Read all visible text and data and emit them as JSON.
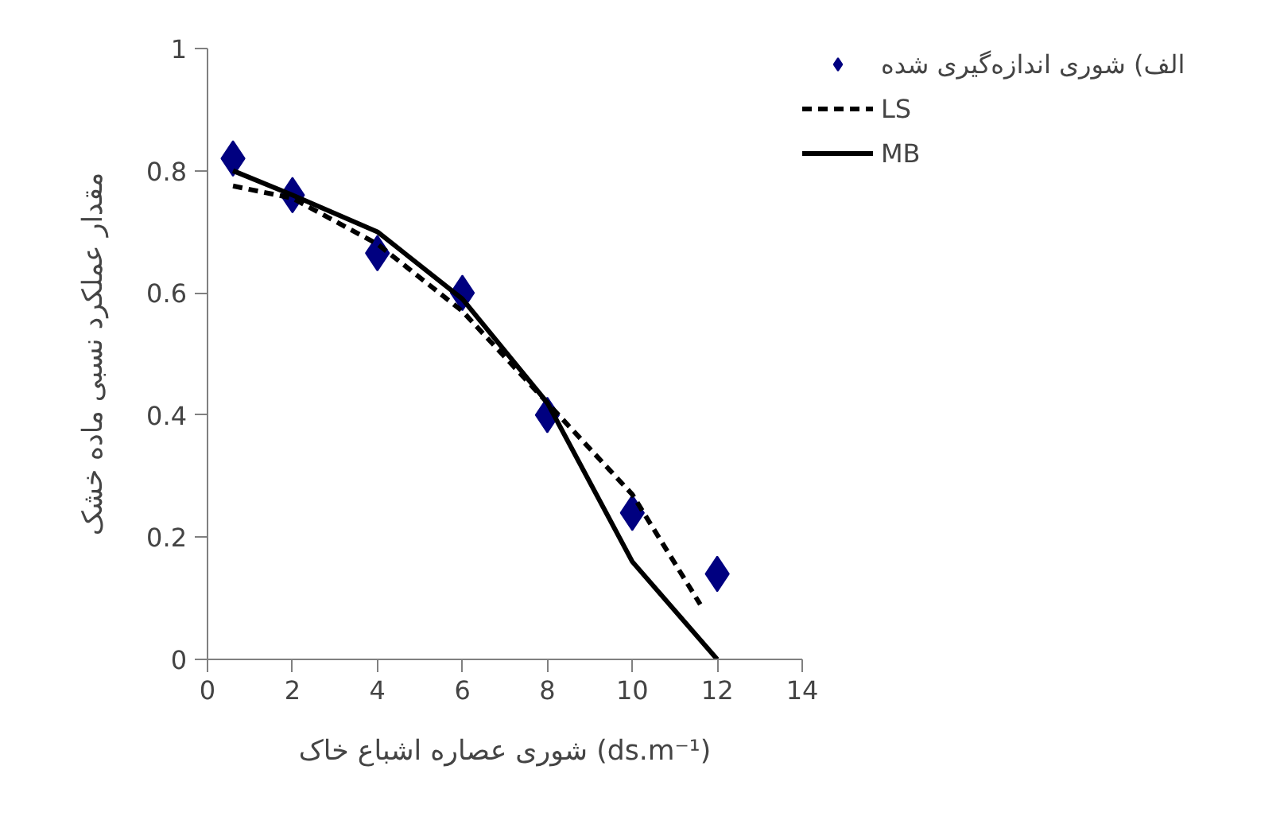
{
  "chart_data": {
    "type": "line",
    "xlabel": "شوری عصاره اشباع خاک (ds.m⁻¹)",
    "ylabel": "مقدار عملکرد نسبی ماده خشک",
    "xlim": [
      0,
      14
    ],
    "xticks": [
      0,
      2,
      4,
      6,
      8,
      10,
      12,
      14
    ],
    "ylim": [
      0,
      1
    ],
    "yticks": [
      0,
      0.2,
      0.4,
      0.6,
      0.8,
      1
    ],
    "grid": false,
    "legend": "top right",
    "series": [
      {
        "name": "الف) شوری اندازه‌گیری شده",
        "type": "scatter",
        "marker": "diamond",
        "color": "#000080",
        "x": [
          0.6,
          2,
          4,
          6,
          8,
          10,
          12
        ],
        "values": [
          0.82,
          0.76,
          0.665,
          0.6,
          0.4,
          0.24,
          0.14
        ]
      },
      {
        "name": "LS",
        "line_style": "dashed",
        "color": "#000000",
        "x": [
          0.6,
          2,
          4,
          6,
          8,
          10,
          11.6
        ],
        "values": [
          0.775,
          0.755,
          0.68,
          0.57,
          0.42,
          0.27,
          0.09
        ]
      },
      {
        "name": "MB",
        "line_style": "solid",
        "color": "#000000",
        "x": [
          0.6,
          2,
          4,
          6,
          8,
          10,
          12
        ],
        "values": [
          0.8,
          0.76,
          0.7,
          0.59,
          0.42,
          0.16,
          0.0
        ]
      }
    ]
  }
}
